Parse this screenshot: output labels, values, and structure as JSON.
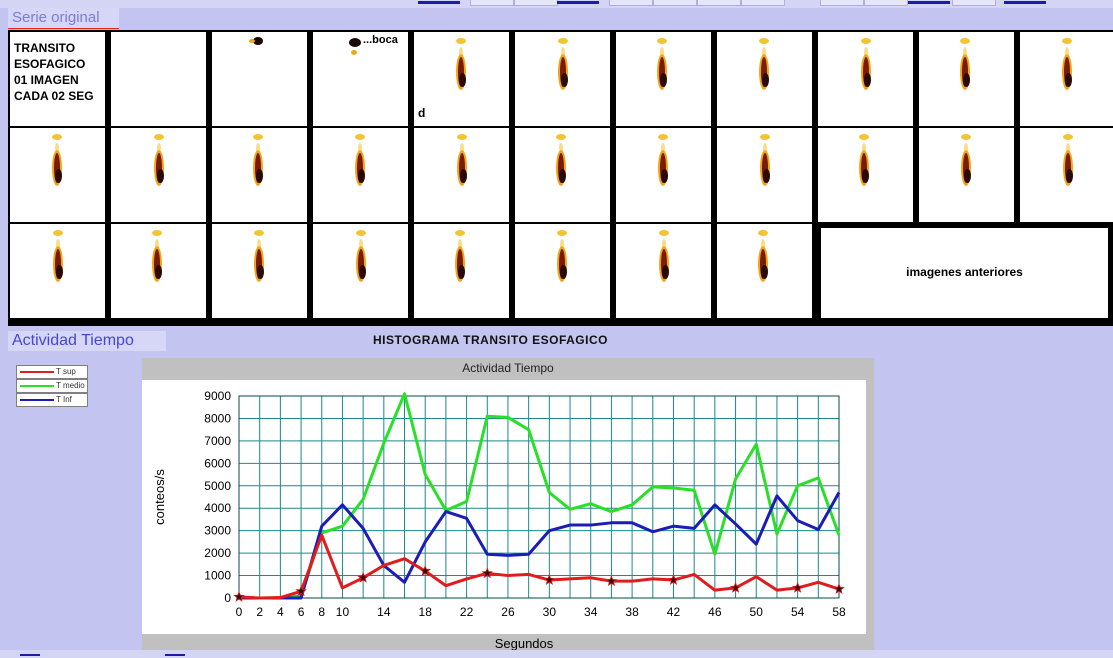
{
  "serie": {
    "title": "Serie original",
    "protocol_text": "TRANSITO\nESOFAGICO\n01 IMAGEN\nCADA 02 SEG",
    "boca_label": "...boca",
    "d_label": "d",
    "anteriores_label": "imagenes anteriores"
  },
  "actividad": {
    "section_title": "Actividad Tiempo",
    "histogram_title": "HISTOGRAMA  TRANSITO  ESOFAGICO"
  },
  "legend": [
    {
      "label": "T sup",
      "color": "#e01c1c"
    },
    {
      "label": "T medio",
      "color": "#28e028"
    },
    {
      "label": "T Inf",
      "color": "#1c1cb8"
    }
  ],
  "chart_data": {
    "type": "line",
    "title": "Actividad Tiempo",
    "xlabel": "Segundos",
    "ylabel": "conteos/s",
    "xlim": [
      0,
      58
    ],
    "ylim": [
      0,
      9000
    ],
    "x_ticks": [
      0,
      2,
      4,
      6,
      8,
      10,
      14,
      18,
      22,
      26,
      30,
      34,
      38,
      42,
      46,
      50,
      54,
      58
    ],
    "y_ticks": [
      0,
      1000,
      2000,
      3000,
      4000,
      5000,
      6000,
      7000,
      8000,
      9000
    ],
    "grid": true,
    "x": [
      0,
      2,
      4,
      6,
      8,
      10,
      12,
      14,
      16,
      18,
      20,
      22,
      24,
      26,
      28,
      30,
      32,
      34,
      36,
      38,
      40,
      42,
      44,
      46,
      48,
      50,
      52,
      54,
      56,
      58
    ],
    "series": [
      {
        "name": "T sup",
        "color": "#e01c1c",
        "markers": true,
        "values": [
          50,
          0,
          20,
          300,
          2800,
          450,
          900,
          1450,
          1750,
          1200,
          550,
          850,
          1100,
          1000,
          1050,
          800,
          850,
          900,
          750,
          750,
          850,
          800,
          1050,
          350,
          450,
          950,
          350,
          450,
          700,
          400
        ]
      },
      {
        "name": "T medio",
        "color": "#28e028",
        "markers": false,
        "values": [
          0,
          0,
          0,
          100,
          2900,
          3200,
          4400,
          6900,
          9100,
          5500,
          3900,
          4300,
          8100,
          8050,
          7500,
          4700,
          3950,
          4200,
          3850,
          4150,
          4950,
          4900,
          4800,
          1950,
          5300,
          6850,
          2850,
          5000,
          5350,
          2800
        ]
      },
      {
        "name": "T Inf",
        "color": "#1c1cb8",
        "markers": false,
        "values": [
          0,
          0,
          0,
          0,
          3200,
          4150,
          3100,
          1450,
          700,
          2500,
          3850,
          3550,
          1950,
          1900,
          1950,
          3000,
          3250,
          3250,
          3350,
          3350,
          2950,
          3200,
          3100,
          4150,
          3300,
          2400,
          4550,
          3450,
          3050,
          4700
        ]
      }
    ]
  }
}
